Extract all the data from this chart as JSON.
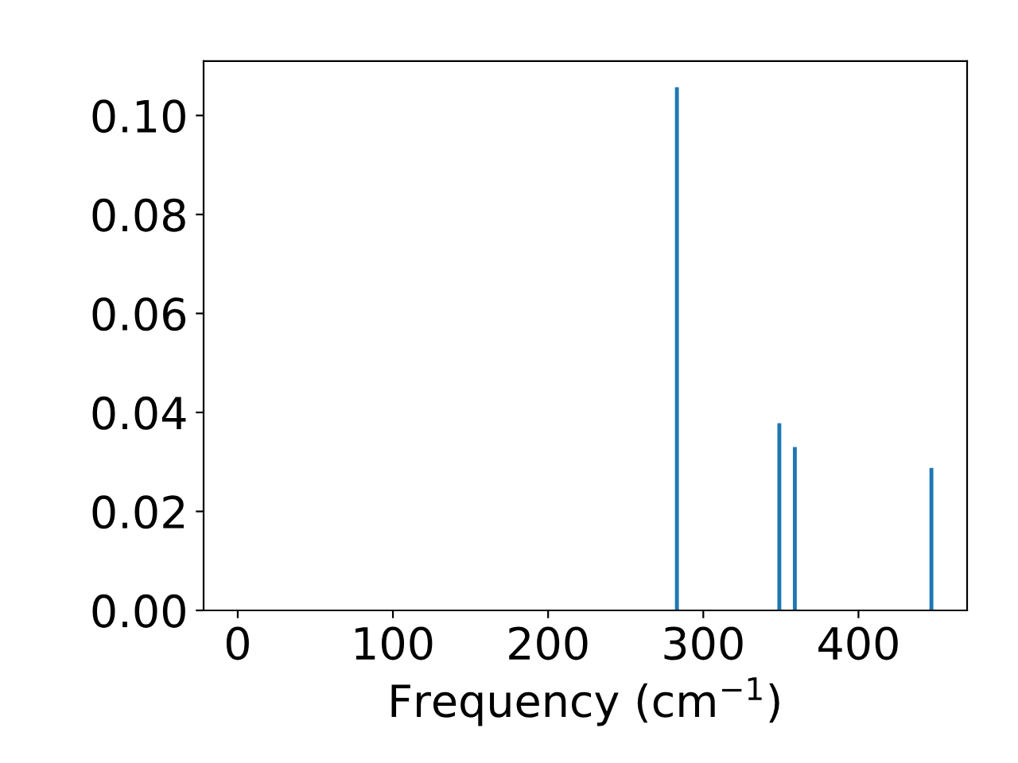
{
  "chart_data": {
    "type": "bar",
    "xlabel": "Frequency (cm$^{−1}$)",
    "x": [
      283,
      349,
      359,
      447
    ],
    "values": [
      0.1057,
      0.0378,
      0.033,
      0.0288
    ],
    "color": "#1f77b4",
    "xlim": [
      -22,
      470
    ],
    "xticks": [
      0,
      100,
      200,
      300,
      400
    ],
    "ylim": [
      0,
      0.111
    ],
    "yticks": [
      {
        "value": 0,
        "label": "0.00"
      },
      {
        "value": 0.02,
        "label": "0.02"
      },
      {
        "value": 0.04,
        "label": "0.04"
      },
      {
        "value": 0.06,
        "label": "0.06"
      },
      {
        "value": 0.08,
        "label": "0.08"
      },
      {
        "value": 0.1,
        "label": "0.10"
      }
    ],
    "grid": false
  }
}
